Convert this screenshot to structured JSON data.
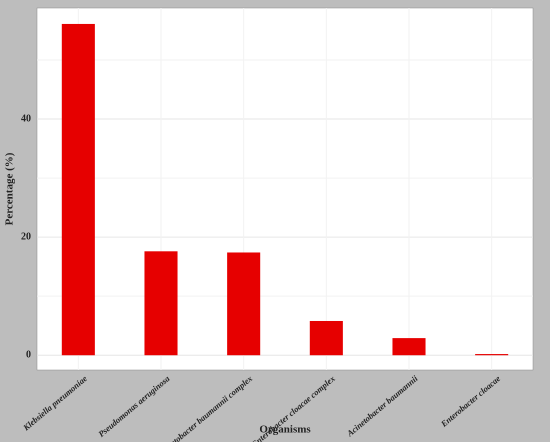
{
  "chart_data": {
    "type": "bar",
    "x_label": "Organisms",
    "y_label": "Percentage (%)",
    "categories": [
      "Klebsiella pneumoniae",
      "Pseudomonas aeruginosa",
      "Acinetobacter baumannii complex",
      "Enterobacter cloacae complex",
      "Acinetobacter baumannii",
      "Enterobacter cloacae"
    ],
    "values": [
      56.1,
      17.6,
      17.4,
      5.8,
      2.9,
      0.2
    ],
    "color": "#e60000",
    "ylim": [
      -2.5,
      58.8
    ],
    "yticks": [
      0,
      20,
      40
    ],
    "minor_yticks": [
      10,
      30,
      50
    ],
    "grid": true
  }
}
